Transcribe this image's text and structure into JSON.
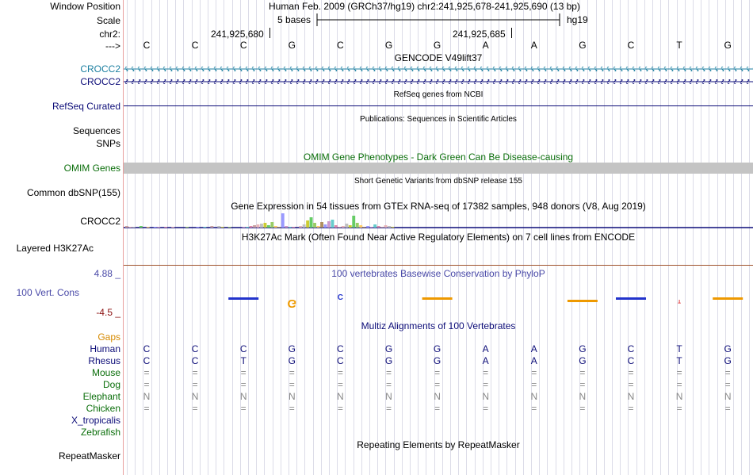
{
  "colors": {
    "gencode": "#1c7fa0",
    "gene_dark": "#0c0c78",
    "omim": "#0a6e0a",
    "conservation": "#4a4aa8",
    "cons_low": "#8b1010",
    "gaps": "#d68a00",
    "primate": "#0c0c78",
    "mammal": "#0a6e0a",
    "other": "#0c0c78"
  },
  "labels": {
    "window_position": "Window Position",
    "scale": "Scale",
    "chrom": "chr2:",
    "arrow": "--->",
    "gencode1": "CROCC2",
    "gencode2": "CROCC2",
    "refseq": "RefSeq Curated",
    "sequences": "Sequences",
    "snps": "SNPs",
    "omim": "OMIM Genes",
    "common_dbsnp": "Common dbSNP(155)",
    "gtex_gene": "CROCC2",
    "layered": "Layered H3K27Ac",
    "cons_max": "4.88 _",
    "cons_name": "100 Vert. Cons",
    "cons_min": "-4.5 _",
    "gaps": "Gaps",
    "repeatmasker": "RepeatMasker"
  },
  "header": {
    "position_text": "Human Feb. 2009 (GRCh37/hg19)   chr2:241,925,678-241,925,690 (13 bp)",
    "scale_text": "5 bases",
    "assembly": "hg19",
    "coord1": "241,925,680",
    "coord2": "241,925,685"
  },
  "sequence": [
    "C",
    "C",
    "C",
    "G",
    "C",
    "G",
    "G",
    "A",
    "A",
    "G",
    "C",
    "T",
    "G"
  ],
  "tracks": {
    "gencode_title": "GENCODE V49lift37",
    "refseq_title": "RefSeq genes from NCBI",
    "publications_title": "Publications: Sequences in Scientific Articles",
    "omim_title": "OMIM Gene Phenotypes - Dark Green Can Be Disease-causing",
    "dbsnp_title": "Short Genetic Variants from dbSNP release 155",
    "gtex_title": "Gene Expression in 54 tissues from GTEx RNA-seq of 17382 samples, 948 donors (V8, Aug 2019)",
    "h3k27ac_title": "H3K27Ac Mark (Often Found Near Active Regulatory Elements) on 7 cell lines from ENCODE",
    "phylop_title": "100 vertebrates Basewise Conservation by PhyloP",
    "multiz_title": "Multiz Alignments of 100 Vertebrates",
    "repeatmasker_title": "Repeating Elements by RepeatMasker"
  },
  "gtex_levels": [
    2,
    1,
    1,
    0,
    2,
    0,
    1,
    0,
    1,
    1,
    0,
    1,
    0,
    1,
    0,
    0,
    0,
    1,
    0,
    0,
    1,
    0,
    1,
    0,
    2,
    0,
    2,
    1,
    0,
    1,
    0,
    0,
    0,
    1,
    1,
    2,
    3,
    4,
    5,
    6,
    3,
    7,
    2,
    1,
    18,
    2,
    1,
    1,
    0,
    2,
    4,
    9,
    13,
    6,
    2,
    7,
    4,
    8,
    10,
    3,
    1,
    2,
    5,
    3,
    15,
    6,
    3,
    1,
    2,
    1,
    4,
    2,
    1,
    3,
    2,
    1
  ],
  "phylop_scores": [
    0.0,
    0.0,
    0.25,
    -1.4,
    0.9,
    0.0,
    0.35,
    0.0,
    0.0,
    -0.3,
    0.15,
    -0.55,
    0.1
  ],
  "species": [
    {
      "name": "Human",
      "group": "primate",
      "bases": [
        "C",
        "C",
        "C",
        "G",
        "C",
        "G",
        "G",
        "A",
        "A",
        "G",
        "C",
        "T",
        "G"
      ]
    },
    {
      "name": "Rhesus",
      "group": "primate",
      "bases": [
        "C",
        "C",
        "T",
        "G",
        "C",
        "G",
        "G",
        "A",
        "A",
        "G",
        "C",
        "T",
        "G"
      ]
    },
    {
      "name": "Mouse",
      "group": "mammal",
      "bases": [
        "=",
        "=",
        "=",
        "=",
        "=",
        "=",
        "=",
        "=",
        "=",
        "=",
        "=",
        "=",
        "="
      ]
    },
    {
      "name": "Dog",
      "group": "mammal",
      "bases": [
        "=",
        "=",
        "=",
        "=",
        "=",
        "=",
        "=",
        "=",
        "=",
        "=",
        "=",
        "=",
        "="
      ]
    },
    {
      "name": "Elephant",
      "group": "mammal",
      "bases": [
        "N",
        "N",
        "N",
        "N",
        "N",
        "N",
        "N",
        "N",
        "N",
        "N",
        "N",
        "N",
        "N"
      ]
    },
    {
      "name": "Chicken",
      "group": "mammal",
      "bases": [
        "=",
        "=",
        "=",
        "=",
        "=",
        "=",
        "=",
        "=",
        "=",
        "=",
        "=",
        "=",
        "="
      ]
    },
    {
      "name": "X_tropicalis",
      "group": "other",
      "bases": []
    },
    {
      "name": "Zebrafish",
      "group": "mammal",
      "bases": []
    }
  ]
}
